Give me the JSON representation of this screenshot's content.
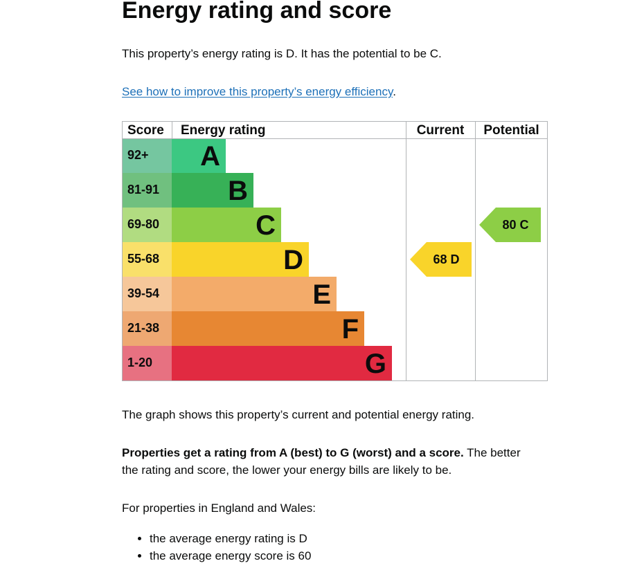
{
  "page": {
    "title": "Energy rating and score",
    "summary": "This property’s energy rating is D. It has the potential to be C.",
    "improve_link": "See how to improve this property’s energy efficiency",
    "improve_link_suffix": ".",
    "graph_description": "The graph shows this property’s current and potential energy rating.",
    "ratings_bold": "Properties get a rating from A (best) to G (worst) and a score.",
    "ratings_rest_line1": " The better",
    "ratings_line2": "the rating and score, the lower your energy bills are likely to be.",
    "region_intro": "For properties in England and Wales:",
    "bullets": [
      "the average energy rating is D",
      "the average energy score is 60"
    ]
  },
  "chart_data": {
    "type": "table",
    "headers": [
      "Score",
      "Energy rating",
      "Current",
      "Potential"
    ],
    "bands": [
      {
        "score": "92+",
        "letter": "A",
        "color": "#3cc882",
        "score_bg": "#75c6a0"
      },
      {
        "score": "81-91",
        "letter": "B",
        "color": "#37b157",
        "score_bg": "#70c07f"
      },
      {
        "score": "69-80",
        "letter": "C",
        "color": "#8dce46",
        "score_bg": "#b1dc81"
      },
      {
        "score": "55-68",
        "letter": "D",
        "color": "#f9d42a",
        "score_bg": "#f9e06a"
      },
      {
        "score": "39-54",
        "letter": "E",
        "color": "#f3ab6a",
        "score_bg": "#f6c79a"
      },
      {
        "score": "21-38",
        "letter": "F",
        "color": "#e78733",
        "score_bg": "#eea872"
      },
      {
        "score": "1-20",
        "letter": "G",
        "color": "#e12a41",
        "score_bg": "#e77181"
      }
    ],
    "current": {
      "score": 68,
      "letter": "D",
      "label": "68  D",
      "color": "#f9d42a"
    },
    "potential": {
      "score": 80,
      "letter": "C",
      "label": "80  C",
      "color": "#8dce46"
    }
  }
}
